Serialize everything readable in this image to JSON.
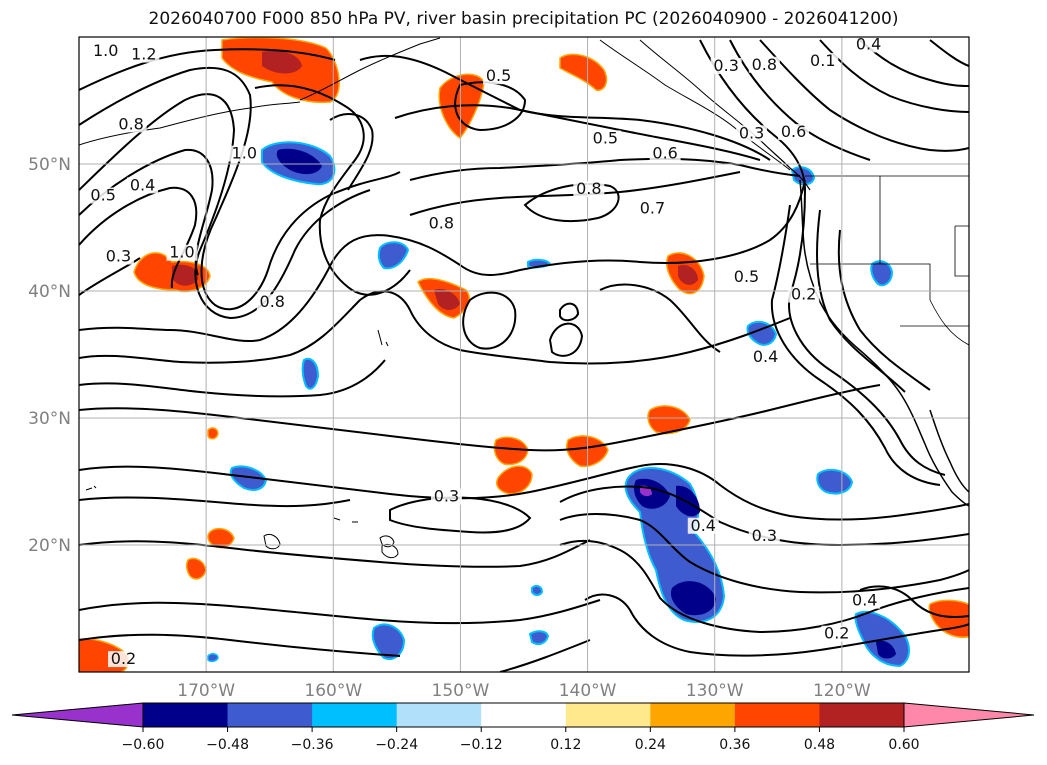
{
  "title": "2026040700 F000 850 hPa PV, river basin precipitation PC (2026040900 - 2026041200)",
  "map": {
    "lon_range": [
      -180,
      -110
    ],
    "lat_range": [
      10,
      60
    ],
    "lon_ticks": [
      {
        "value": -170,
        "label": "170°W"
      },
      {
        "value": -160,
        "label": "160°W"
      },
      {
        "value": -150,
        "label": "150°W"
      },
      {
        "value": -140,
        "label": "140°W"
      },
      {
        "value": -130,
        "label": "130°W"
      },
      {
        "value": -120,
        "label": "120°W"
      }
    ],
    "lat_ticks": [
      {
        "value": 20,
        "label": "20°N"
      },
      {
        "value": 30,
        "label": "30°N"
      },
      {
        "value": 40,
        "label": "40°N"
      },
      {
        "value": 50,
        "label": "50°N"
      }
    ],
    "grid": true,
    "contour_labels": [
      {
        "text": "1.0",
        "lon": -177.9,
        "lat": 58.6
      },
      {
        "text": "1.2",
        "lon": -174.9,
        "lat": 58.3
      },
      {
        "text": "0.5",
        "lon": -147.0,
        "lat": 56.6
      },
      {
        "text": "0.8",
        "lon": -175.9,
        "lat": 52.8
      },
      {
        "text": "1.0",
        "lon": -167.0,
        "lat": 50.5
      },
      {
        "text": "0.5",
        "lon": -178.1,
        "lat": 47.2
      },
      {
        "text": "0.4",
        "lon": -175.0,
        "lat": 48.0
      },
      {
        "text": "0.3",
        "lon": -176.9,
        "lat": 42.4
      },
      {
        "text": "1.0",
        "lon": -171.9,
        "lat": 42.7
      },
      {
        "text": "0.8",
        "lon": -164.8,
        "lat": 38.8
      },
      {
        "text": "0.8",
        "lon": -151.5,
        "lat": 45.0
      },
      {
        "text": "0.5",
        "lon": -138.6,
        "lat": 51.7
      },
      {
        "text": "0.6",
        "lon": -133.9,
        "lat": 50.5
      },
      {
        "text": "0.8",
        "lon": -139.9,
        "lat": 47.7
      },
      {
        "text": "0.7",
        "lon": -134.9,
        "lat": 46.2
      },
      {
        "text": "0.3",
        "lon": -129.1,
        "lat": 57.4
      },
      {
        "text": "0.8",
        "lon": -126.1,
        "lat": 57.5
      },
      {
        "text": "0.1",
        "lon": -121.5,
        "lat": 57.8
      },
      {
        "text": "0.4",
        "lon": -117.9,
        "lat": 59.1
      },
      {
        "text": "0.3",
        "lon": -127.1,
        "lat": 52.1
      },
      {
        "text": "0.6",
        "lon": -123.8,
        "lat": 52.2
      },
      {
        "text": "0.5",
        "lon": -127.5,
        "lat": 40.8
      },
      {
        "text": "0.2",
        "lon": -123.0,
        "lat": 39.4
      },
      {
        "text": "0.4",
        "lon": -126.0,
        "lat": 34.5
      },
      {
        "text": "0.3",
        "lon": -151.1,
        "lat": 23.5
      },
      {
        "text": "0.4",
        "lon": -130.9,
        "lat": 21.2
      },
      {
        "text": "0.3",
        "lon": -126.1,
        "lat": 20.4
      },
      {
        "text": "0.4",
        "lon": -118.2,
        "lat": 15.3
      },
      {
        "text": "0.2",
        "lon": -120.4,
        "lat": 12.7
      },
      {
        "text": "0.2",
        "lon": -176.5,
        "lat": 10.7
      }
    ]
  },
  "colorbar": {
    "colors": [
      "#9932cc",
      "#00008b",
      "#3f5bd0",
      "#00bfff",
      "#b0e0fa",
      "#ffffff",
      "#ffe98c",
      "#ffa500",
      "#ff4500",
      "#b22222",
      "#ff88aa"
    ],
    "tick_labels": [
      "−0.60",
      "−0.48",
      "−0.36",
      "−0.24",
      "−0.12",
      "0.12",
      "0.24",
      "0.36",
      "0.48",
      "0.60"
    ]
  }
}
